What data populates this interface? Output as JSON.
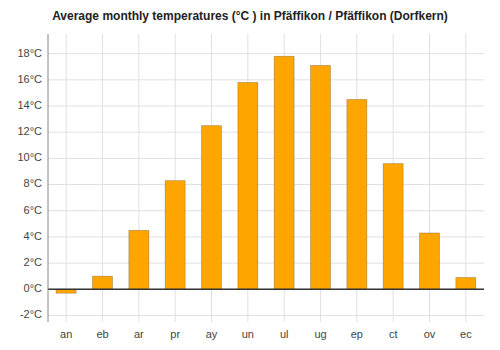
{
  "chart_data": {
    "type": "bar",
    "title": "Average monthly temperatures (°C ) in Pfäffikon / Pfäffikon (Dorfkern)",
    "categories": [
      "an",
      "eb",
      "ar",
      "pr",
      "ay",
      "un",
      "ul",
      "ug",
      "ep",
      "ct",
      "ov",
      "ec"
    ],
    "values": [
      -0.3,
      1.0,
      4.5,
      8.3,
      12.5,
      15.8,
      17.8,
      17.1,
      14.5,
      9.6,
      4.3,
      0.9
    ],
    "color": "#FFA500",
    "ylim": [
      -2.5,
      19.5
    ],
    "yticks": [
      {
        "value": -2,
        "label": "-2°C"
      },
      {
        "value": 0,
        "label": "0°C"
      },
      {
        "value": 2,
        "label": "2°C"
      },
      {
        "value": 4,
        "label": "4°C"
      },
      {
        "value": 6,
        "label": "6°C"
      },
      {
        "value": 8,
        "label": "8°C"
      },
      {
        "value": 10,
        "label": "10°C"
      },
      {
        "value": 12,
        "label": "12°C"
      },
      {
        "value": 14,
        "label": "14°C"
      },
      {
        "value": 16,
        "label": "16°C"
      },
      {
        "value": 18,
        "label": "18°C"
      }
    ],
    "grid": true
  }
}
